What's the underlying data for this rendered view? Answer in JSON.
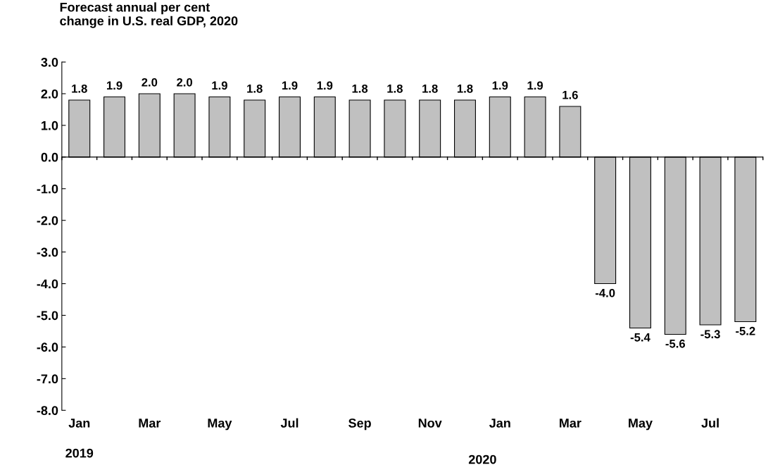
{
  "chart_data": {
    "type": "bar",
    "title": "Forecast annual per cent\nchange in U.S. real GDP, 2020",
    "categories": [
      "Jan",
      null,
      "Mar",
      null,
      "May",
      null,
      "Jul",
      null,
      "Sep",
      null,
      "Nov",
      null,
      "Jan",
      null,
      "Mar",
      null,
      "May",
      null,
      "Jul",
      null
    ],
    "values": [
      1.8,
      1.9,
      2.0,
      2.0,
      1.9,
      1.8,
      1.9,
      1.9,
      1.8,
      1.8,
      1.8,
      1.8,
      1.9,
      1.9,
      1.6,
      -4.0,
      -5.4,
      -5.6,
      -5.3,
      -5.2
    ],
    "color": "#c0c0c0",
    "value_labels": [
      "1.8",
      "1.9",
      "2.0",
      "2.0",
      "1.9",
      "1.8",
      "1.9",
      "1.9",
      "1.8",
      "1.8",
      "1.8",
      "1.8",
      "1.9",
      "1.9",
      "1.6",
      "-4.0",
      "-5.4",
      "-5.6",
      "-5.3",
      "-5.2"
    ],
    "ylim": [
      -8,
      3
    ],
    "yticks": [
      {
        "value": -8,
        "label": "-8.0"
      },
      {
        "value": -7,
        "label": "-7.0"
      },
      {
        "value": -6,
        "label": "-6.0"
      },
      {
        "value": -5,
        "label": "-5.0"
      },
      {
        "value": -4,
        "label": "-4.0"
      },
      {
        "value": -3,
        "label": "-3.0"
      },
      {
        "value": -2,
        "label": "-2.0"
      },
      {
        "value": -1,
        "label": "-1.0"
      },
      {
        "value": 0,
        "label": "0.0"
      },
      {
        "value": 1,
        "label": "1.0"
      },
      {
        "value": 2,
        "label": "2.0"
      },
      {
        "value": 3,
        "label": "3.0"
      }
    ],
    "annotations": [
      "2019",
      "2020"
    ]
  }
}
